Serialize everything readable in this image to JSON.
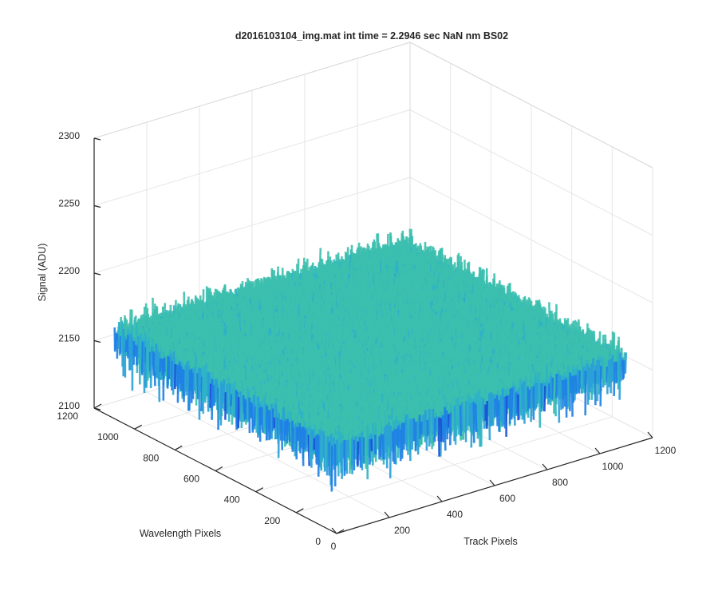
{
  "chart_data": {
    "type": "surface",
    "title": "d2016103104_img.mat int time = 2.2946 sec  NaN nm BS02",
    "xlabel": "Track Pixels",
    "ylabel": "Wavelength Pixels",
    "zlabel": "Signal (ADU)",
    "xlim": [
      0,
      1200
    ],
    "ylim": [
      0,
      1200
    ],
    "zlim": [
      2100,
      2300
    ],
    "xticks": [
      "0",
      "200",
      "400",
      "600",
      "800",
      "1000",
      "1200"
    ],
    "yticks": [
      "0",
      "200",
      "400",
      "600",
      "800",
      "1000",
      "1200"
    ],
    "zticks": [
      "2100",
      "2150",
      "2200",
      "2250",
      "2300"
    ],
    "surface": {
      "x_extent": [
        1,
        1100
      ],
      "y_extent": [
        1,
        1100
      ],
      "mean_signal": 2162,
      "noise_amplitude": 10,
      "min_signal": 2112,
      "max_signal": 2212,
      "colormap": [
        "#1a4fd8",
        "#1e7ee6",
        "#2a9fd8",
        "#2fb3c6",
        "#3cbfae"
      ]
    },
    "grid": true,
    "view": "3d-oblique"
  }
}
